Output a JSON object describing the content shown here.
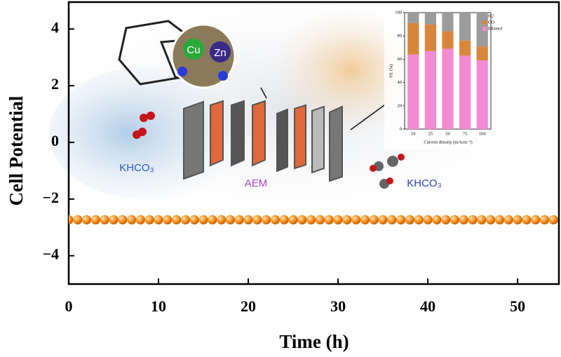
{
  "chart_data": [
    {
      "type": "scatter",
      "xlabel": "Time (h)",
      "ylabel": "Cell Potential",
      "x": [
        0,
        1,
        2,
        3,
        4,
        5,
        6,
        7,
        8,
        9,
        10,
        11,
        12,
        13,
        14,
        15,
        16,
        17,
        18,
        19,
        20,
        21,
        22,
        23,
        24,
        25,
        26,
        27,
        28,
        29,
        30,
        31,
        32,
        33,
        34,
        35,
        36,
        37,
        38,
        39,
        40,
        41,
        42,
        43,
        44,
        45,
        46,
        47,
        48,
        49,
        50,
        51,
        52,
        53,
        54
      ],
      "values": [
        -2.73,
        -2.73,
        -2.73,
        -2.73,
        -2.73,
        -2.73,
        -2.73,
        -2.73,
        -2.73,
        -2.73,
        -2.73,
        -2.73,
        -2.73,
        -2.73,
        -2.73,
        -2.73,
        -2.73,
        -2.73,
        -2.73,
        -2.73,
        -2.73,
        -2.73,
        -2.73,
        -2.73,
        -2.73,
        -2.73,
        -2.73,
        -2.73,
        -2.73,
        -2.73,
        -2.73,
        -2.73,
        -2.73,
        -2.73,
        -2.73,
        -2.73,
        -2.73,
        -2.73,
        -2.73,
        -2.73,
        -2.73,
        -2.73,
        -2.73,
        -2.73,
        -2.73,
        -2.73,
        -2.73,
        -2.73,
        -2.73,
        -2.73,
        -2.73,
        -2.73,
        -2.73,
        -2.73,
        -2.73
      ],
      "color": "#f28a1a",
      "xlim": [
        0,
        54.6
      ],
      "xticks": [
        0,
        10,
        20,
        30,
        40,
        50
      ],
      "ylim": [
        -5,
        4.95
      ],
      "yticks": [
        4,
        2,
        0,
        {
          "value": -2,
          "label": "−2"
        },
        {
          "value": -4,
          "label": "−4"
        }
      ],
      "annotations": [
        "KHCO₃",
        "AEM",
        "KHCO₃",
        "Cu",
        "Zn"
      ]
    },
    {
      "type": "stacked_bar",
      "xlabel": "Current density (mAcm⁻²)",
      "ylabel": "FE (%)",
      "categories": [
        "10",
        "25",
        "50",
        "75",
        "100"
      ],
      "series": [
        {
          "name": "Ethanol",
          "color": "#f38ad2",
          "values": [
            64,
            67,
            69,
            63,
            59
          ]
        },
        {
          "name": "CO",
          "color": "#d9863d",
          "values": [
            27,
            23,
            15,
            13,
            12
          ]
        },
        {
          "name": "H2",
          "color": "#9c9c9c",
          "values": [
            9,
            10,
            16,
            24,
            29
          ]
        }
      ],
      "ylim": [
        0,
        100
      ],
      "yticks": [
        0,
        20,
        40,
        60,
        80,
        100
      ],
      "legend": "top-right"
    }
  ]
}
